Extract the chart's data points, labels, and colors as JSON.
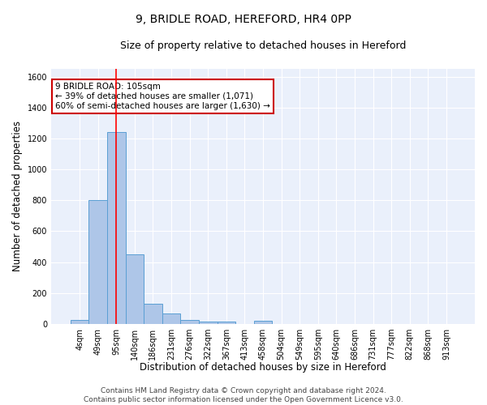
{
  "title": "9, BRIDLE ROAD, HEREFORD, HR4 0PP",
  "subtitle": "Size of property relative to detached houses in Hereford",
  "xlabel": "Distribution of detached houses by size in Hereford",
  "ylabel": "Number of detached properties",
  "bin_labels": [
    "4sqm",
    "49sqm",
    "95sqm",
    "140sqm",
    "186sqm",
    "231sqm",
    "276sqm",
    "322sqm",
    "367sqm",
    "413sqm",
    "458sqm",
    "504sqm",
    "549sqm",
    "595sqm",
    "640sqm",
    "686sqm",
    "731sqm",
    "777sqm",
    "822sqm",
    "868sqm",
    "913sqm"
  ],
  "bar_heights": [
    25,
    800,
    1240,
    450,
    130,
    65,
    25,
    15,
    15,
    0,
    20,
    0,
    0,
    0,
    0,
    0,
    0,
    0,
    0,
    0,
    0
  ],
  "bar_color": "#aec6e8",
  "bar_edge_color": "#5a9fd4",
  "background_color": "#eaf0fb",
  "grid_color": "#ffffff",
  "red_line_x": 2,
  "annotation_text": "9 BRIDLE ROAD: 105sqm\n← 39% of detached houses are smaller (1,071)\n60% of semi-detached houses are larger (1,630) →",
  "annotation_box_color": "#ffffff",
  "annotation_box_edge": "#cc0000",
  "ylim": [
    0,
    1650
  ],
  "yticks": [
    0,
    200,
    400,
    600,
    800,
    1000,
    1200,
    1400,
    1600
  ],
  "footer": "Contains HM Land Registry data © Crown copyright and database right 2024.\nContains public sector information licensed under the Open Government Licence v3.0.",
  "title_fontsize": 10,
  "subtitle_fontsize": 9,
  "xlabel_fontsize": 8.5,
  "ylabel_fontsize": 8.5,
  "tick_fontsize": 7,
  "annotation_fontsize": 7.5,
  "footer_fontsize": 6.5
}
